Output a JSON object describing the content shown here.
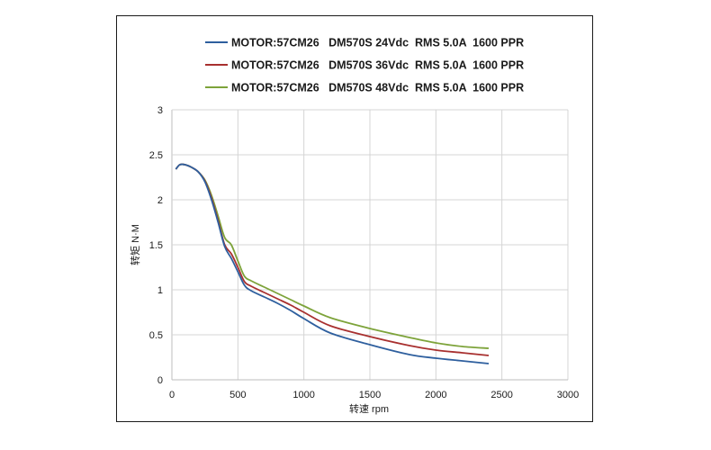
{
  "chart_data": {
    "type": "line",
    "title": "",
    "xlabel": "转速 rpm",
    "ylabel": "转矩 N·M",
    "xlim": [
      0,
      3000
    ],
    "ylim": [
      0,
      3
    ],
    "xticks": [
      0,
      500,
      1000,
      1500,
      2000,
      2500,
      3000
    ],
    "yticks": [
      0,
      0.5,
      1,
      1.5,
      2,
      2.5,
      3
    ],
    "ytick_labels": [
      "0",
      "0.5",
      "1",
      "1.5",
      "2",
      "2.5",
      "3"
    ],
    "grid": true,
    "legend_position": "top",
    "series": [
      {
        "name": "MOTOR:57CM26   DM570S 24Vdc  RMS 5.0A  1600 PPR",
        "color": "#2e5f9e",
        "x": [
          30,
          60,
          100,
          150,
          200,
          250,
          300,
          350,
          400,
          450,
          500,
          550,
          600,
          700,
          800,
          900,
          1000,
          1200,
          1500,
          1800,
          2000,
          2200,
          2400
        ],
        "y": [
          2.34,
          2.39,
          2.39,
          2.36,
          2.31,
          2.2,
          2.0,
          1.75,
          1.48,
          1.35,
          1.2,
          1.05,
          0.99,
          0.92,
          0.85,
          0.77,
          0.68,
          0.52,
          0.39,
          0.28,
          0.24,
          0.21,
          0.18
        ]
      },
      {
        "name": "MOTOR:57CM26   DM570S 36Vdc  RMS 5.0A  1600 PPR",
        "color": "#a8302f",
        "x": [
          30,
          60,
          100,
          150,
          200,
          250,
          300,
          350,
          400,
          450,
          500,
          550,
          600,
          700,
          800,
          900,
          1000,
          1200,
          1500,
          1800,
          2000,
          2200,
          2400
        ],
        "y": [
          2.34,
          2.39,
          2.39,
          2.36,
          2.31,
          2.21,
          2.02,
          1.77,
          1.5,
          1.4,
          1.25,
          1.09,
          1.04,
          0.97,
          0.9,
          0.83,
          0.75,
          0.6,
          0.48,
          0.38,
          0.33,
          0.3,
          0.27
        ]
      },
      {
        "name": "MOTOR:57CM26   DM570S 48Vdc  RMS 5.0A  1600 PPR",
        "color": "#7da33a",
        "x": [
          30,
          60,
          100,
          150,
          200,
          250,
          300,
          350,
          400,
          450,
          500,
          550,
          600,
          700,
          800,
          900,
          1000,
          1200,
          1500,
          1800,
          2000,
          2200,
          2400
        ],
        "y": [
          2.34,
          2.39,
          2.39,
          2.36,
          2.31,
          2.22,
          2.05,
          1.82,
          1.58,
          1.5,
          1.32,
          1.15,
          1.1,
          1.03,
          0.96,
          0.89,
          0.82,
          0.69,
          0.57,
          0.47,
          0.41,
          0.37,
          0.35
        ]
      }
    ]
  }
}
